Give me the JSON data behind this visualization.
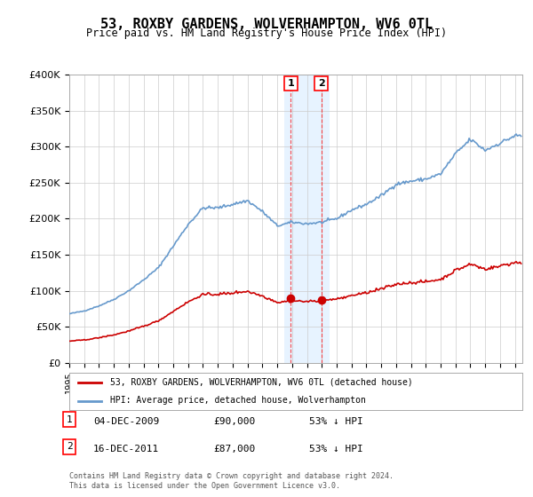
{
  "title": "53, ROXBY GARDENS, WOLVERHAMPTON, WV6 0TL",
  "subtitle": "Price paid vs. HM Land Registry's House Price Index (HPI)",
  "ylabel_ticks": [
    "£0",
    "£50K",
    "£100K",
    "£150K",
    "£200K",
    "£250K",
    "£300K",
    "£350K",
    "£400K"
  ],
  "ylim": [
    0,
    400000
  ],
  "xlim_start": 1995.0,
  "xlim_end": 2025.5,
  "transaction1_date": 2009.92,
  "transaction1_price": 90000,
  "transaction1_label": "1",
  "transaction2_date": 2011.96,
  "transaction2_price": 87000,
  "transaction2_label": "2",
  "hpi_color": "#6699cc",
  "property_color": "#cc0000",
  "highlight_color": "#ddeeff",
  "highlight_x1": 2009.5,
  "highlight_x2": 2012.5,
  "legend_property": "53, ROXBY GARDENS, WOLVERHAMPTON, WV6 0TL (detached house)",
  "legend_hpi": "HPI: Average price, detached house, Wolverhampton",
  "table_rows": [
    {
      "num": "1",
      "date": "04-DEC-2009",
      "price": "£90,000",
      "hpi": "53% ↓ HPI"
    },
    {
      "num": "2",
      "date": "16-DEC-2011",
      "price": "£87,000",
      "hpi": "53% ↓ HPI"
    }
  ],
  "footnote": "Contains HM Land Registry data © Crown copyright and database right 2024.\nThis data is licensed under the Open Government Licence v3.0.",
  "bg_color": "#ffffff",
  "grid_color": "#cccccc"
}
